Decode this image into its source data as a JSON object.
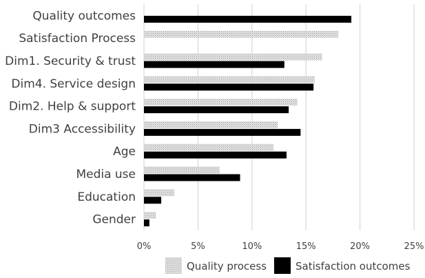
{
  "chart_data": {
    "type": "bar",
    "orientation": "horizontal",
    "categories": [
      "Quality outcomes",
      "Satisfaction Process",
      "Dim1. Security & trust",
      "Dim4. Service design",
      "Dim2. Help & support",
      "Dim3 Accessibility",
      "Age",
      "Media use",
      "Education",
      "Gender"
    ],
    "series": [
      {
        "name": "Quality process",
        "color": "#d9d9d9",
        "pattern": "dotted",
        "values": [
          null,
          18.0,
          16.5,
          15.8,
          14.2,
          12.4,
          12.0,
          7.0,
          2.8,
          1.1
        ]
      },
      {
        "name": "Satisfaction outcomes",
        "color": "#000000",
        "pattern": "solid",
        "values": [
          19.2,
          null,
          13.0,
          15.7,
          13.4,
          14.5,
          13.2,
          8.9,
          1.6,
          0.5
        ]
      }
    ],
    "xlim": [
      0,
      25
    ],
    "xticks": [
      "0%",
      "5%",
      "10%",
      "15%",
      "20%",
      "25%"
    ],
    "xtick_values": [
      0,
      5,
      10,
      15,
      20,
      25
    ],
    "grid": true,
    "legend_position": "bottom"
  }
}
